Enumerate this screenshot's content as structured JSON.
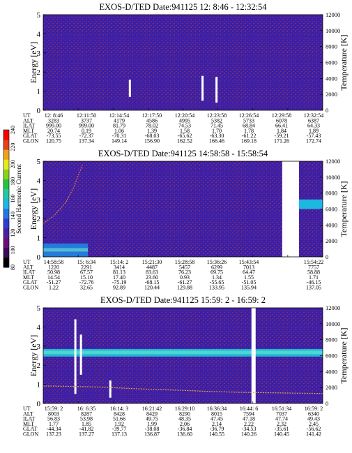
{
  "colorbar": {
    "label": "Second Harmonic Current",
    "ticks": [
      "80",
      "100",
      "120",
      "140",
      "160",
      "180",
      "200",
      "220",
      "240"
    ],
    "colors": [
      "#000000",
      "#3a0a55",
      "#6a0d7a",
      "#4b1fa0",
      "#2c3fd0",
      "#1f78e6",
      "#18b8e8",
      "#1ccca0",
      "#23c63a",
      "#8ad41a",
      "#e8e81a",
      "#f0a01a",
      "#e8401a",
      "#ff0000"
    ]
  },
  "chart_data": [
    {
      "type": "heatmap",
      "title": "EXOS-D/TED   Date:941125   12: 8:46 - 12:32:54",
      "ylabel": "Energy [eV]",
      "ylim": [
        0,
        5
      ],
      "yticks": [
        "0",
        "1",
        "2",
        "3",
        "4",
        "5"
      ],
      "y2label": "Temperature [K]",
      "y2lim": [
        0,
        12000
      ],
      "y2ticks": [
        "0",
        "2000",
        "4000",
        "6000",
        "8000",
        "10000",
        "12000"
      ],
      "background": "#3b1fa8",
      "gaps": [],
      "white_spikes": [
        {
          "x": 0.31,
          "y0": 0.7,
          "y1": 1.6
        },
        {
          "x": 0.57,
          "y0": 0.5,
          "y1": 1.8
        },
        {
          "x": 0.62,
          "y0": 0.4,
          "y1": 1.75
        }
      ],
      "band": null,
      "temperature_series": null,
      "table": {
        "row_labels": [
          "UT",
          "ALT",
          "ILAT",
          "MLT",
          "GLAT",
          "GLON"
        ],
        "columns": [
          [
            "12: 8:46",
            "3283",
            "999.00",
            "20.74",
            "-73.55",
            "120.75"
          ],
          [
            "12:11:50",
            "3737",
            "999.00",
            "0.19",
            "-72.37",
            "137.34"
          ],
          [
            "12:14:54",
            "4179",
            "81.79",
            "1.06",
            "-70.31",
            "149.14"
          ],
          [
            "12:17:50",
            "4586",
            "78.02",
            "1.39",
            "-68.03",
            "156.90"
          ],
          [
            "12:20:54",
            "4995",
            "74.53",
            "1.58",
            "-65.62",
            "162.52"
          ],
          [
            "12:23:58",
            "5382",
            "71.45",
            "1.70",
            "-63.30",
            "166.46"
          ],
          [
            "12:26:54",
            "5733",
            "68.84",
            "1.78",
            "-61.22",
            "169.18"
          ],
          [
            "12:29:58",
            "6078",
            "66.41",
            "1.84",
            "-59.21",
            "171.26"
          ],
          [
            "12:32:54",
            "6387",
            "64.33",
            "1.89",
            "-57.43",
            "172.74"
          ]
        ]
      }
    },
    {
      "type": "heatmap",
      "title": "EXOS-D/TED   Date:941125   14:58:58 - 15:58:54",
      "ylabel": "Energy [eV]",
      "ylim": [
        0,
        5
      ],
      "yticks": [
        "0",
        "1",
        "2",
        "3",
        "4",
        "5"
      ],
      "y2label": "Temperature [K]",
      "y2lim": [
        0,
        12000
      ],
      "y2ticks": [
        "0",
        "2000",
        "4000",
        "6000",
        "8000",
        "10000",
        "12000"
      ],
      "background": "#3b1fa8",
      "gaps": [
        [
          0.855,
          0.915
        ]
      ],
      "white_spikes": [],
      "band": {
        "x0": 0.0,
        "x1": 0.16,
        "y0": 0.0,
        "y1": 0.7,
        "color": "#1f8be8"
      },
      "right_band": {
        "x0": 0.915,
        "x1": 1.0,
        "y0": 2.5,
        "y1": 3.0,
        "color": "#18c8e8"
      },
      "temperature_series": {
        "x": [
          0.0,
          0.04,
          0.08,
          0.11,
          0.14
        ],
        "y": [
          4200,
          5200,
          6800,
          8800,
          11500
        ],
        "color": "#e0803a"
      },
      "table": {
        "row_labels": [
          "UT",
          "ALT",
          "ILAT",
          "MLT",
          "GLAT",
          "GLON"
        ],
        "columns": [
          [
            "14:58:58",
            "1220",
            "50.98",
            "14.54",
            "-51.27",
            "1.22"
          ],
          [
            "15: 6:34",
            "2291",
            "67.57",
            "15.10",
            "-72.76",
            "32.65"
          ],
          [
            "15:14: 2",
            "3414",
            "81.13",
            "17.40",
            "-75.19",
            "92.89"
          ],
          [
            "15:21:30",
            "4487",
            "83.63",
            "23.60",
            "-68.15",
            "120.44"
          ],
          [
            "15:28:58",
            "5457",
            "76.23",
            "0.93",
            "-61.27",
            "129.88"
          ],
          [
            "15:36:26",
            "6299",
            "69.75",
            "1.34",
            "-55.65",
            "133.95"
          ],
          [
            "15:43:54",
            "7013",
            "64.47",
            "1.55",
            "-51.05",
            "135.94"
          ],
          [
            "",
            "",
            " ",
            "",
            "",
            ""
          ],
          [
            "15:54:22",
            "7757",
            "58.88",
            "1.71",
            "-46.15",
            "137.05"
          ]
        ]
      }
    },
    {
      "type": "heatmap",
      "title": "EXOS-D/TED   Date:941125   15:59: 2 - 16:59: 2",
      "ylabel": "Energy [eV]",
      "ylim": [
        0,
        5
      ],
      "yticks": [
        "0",
        "1",
        "2",
        "3",
        "4",
        "5"
      ],
      "y2label": "Temperature [K]",
      "y2lim": [
        0,
        12000
      ],
      "y2ticks": [
        "0",
        "2000",
        "4000",
        "6000",
        "8000",
        "10000",
        "12000"
      ],
      "background": "#3b1fa8",
      "gaps": [
        [
          0.745,
          0.76
        ]
      ],
      "white_spikes": [
        {
          "x": 0.115,
          "y0": 0.5,
          "y1": 4.4
        },
        {
          "x": 0.135,
          "y0": 1.5,
          "y1": 3.6
        },
        {
          "x": 0.24,
          "y0": 0.3,
          "y1": 1.2
        }
      ],
      "band": {
        "x0": 0.0,
        "x1": 1.0,
        "y0": 2.45,
        "y1": 2.85,
        "color": "#18d0e0"
      },
      "temperature_series": {
        "x": [
          0.0,
          0.1,
          0.2,
          0.3,
          0.4,
          0.5,
          0.6,
          0.7,
          0.8,
          0.9,
          1.0
        ],
        "y": [
          2200,
          2150,
          2050,
          1900,
          1750,
          1650,
          1500,
          1400,
          1350,
          1300,
          1250
        ],
        "color": "#e8a040"
      },
      "table": {
        "row_labels": [
          "UT",
          "ALT",
          "ILAT",
          "MLT",
          "GLAT",
          "GLON"
        ],
        "columns": [
          [
            "15:59: 2",
            "8003",
            "56.83",
            "1.77",
            "-44.34",
            "137.23"
          ],
          [
            "16: 6:35",
            "8287",
            "53.98",
            "1.85",
            "-41.82",
            "137.27"
          ],
          [
            "16:14: 3",
            "8428",
            "51.66",
            "1.92",
            "-39.77",
            "137.13"
          ],
          [
            "16:21:42",
            "8429",
            "49.75",
            "1.99",
            "-38.08",
            "136.87"
          ],
          [
            "16:29:10",
            "8290",
            "48.35",
            "2.06",
            "-36.84",
            "136.60"
          ],
          [
            "16:36:34",
            "8015",
            "47.45",
            "2.14",
            "-36.79",
            "140.55"
          ],
          [
            "16:44: 6",
            "7594",
            "47.18",
            "2.22",
            "-34.53",
            "140.26"
          ],
          [
            "16:51:34",
            "7037",
            "47.74",
            "2.32",
            "-35.61",
            "140.45"
          ],
          [
            "16:59: 2",
            "6340",
            "49.43",
            "2.45",
            "-56.62",
            "141.42"
          ]
        ]
      }
    }
  ]
}
